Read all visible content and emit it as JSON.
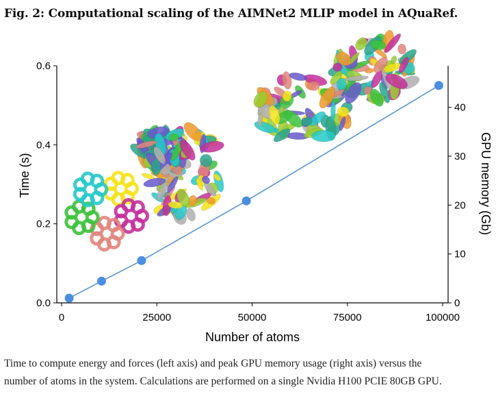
{
  "figure": {
    "title": "Fig. 2: Computational scaling of the AIMNet2 MLIP model in AQuaRef.",
    "caption_line1": "Time to compute energy and forces (left axis) and peak GPU memory usage (right axis) versus the",
    "caption_line2": "number of atoms in the system. Calculations are performed on a single Nvidia H100 PCIE 80GB GPU."
  },
  "colors": {
    "series": "#4a8fe0",
    "line": "#5b93d6",
    "axis": "#000000",
    "molecule_palette": [
      "#f5e31b",
      "#c4309b",
      "#e2857c",
      "#3dc23d",
      "#27c9c9",
      "#ef9a2c",
      "#2aa58c",
      "#6a5acd",
      "#9acd32",
      "#b0b0b0"
    ]
  },
  "chart_data": {
    "type": "line",
    "title": "",
    "xlabel": "Number of atoms",
    "ylabel": "Time (s)",
    "y2label": "GPU memory (Gb)",
    "xlim": [
      0,
      100000
    ],
    "ylim": [
      0,
      0.6
    ],
    "y2lim": [
      0,
      48.5
    ],
    "xticks": [
      0,
      25000,
      50000,
      75000,
      100000
    ],
    "xtick_labels": [
      "0",
      "25000",
      "50000",
      "75000",
      "100000"
    ],
    "yticks": [
      0.0,
      0.2,
      0.4,
      0.6
    ],
    "ytick_labels": [
      "0.0",
      "0.2",
      "0.4",
      "0.6"
    ],
    "y2ticks": [
      0,
      10,
      20,
      30,
      40
    ],
    "y2tick_labels": [
      "0",
      "10",
      "20",
      "30",
      "40"
    ],
    "series": [
      {
        "name": "Time (s)",
        "x": [
          2000,
          10500,
          21000,
          48500,
          99000
        ],
        "y": [
          0.012,
          0.055,
          0.107,
          0.258,
          0.55
        ]
      }
    ],
    "annotations": [
      "protein structure illustrations (cartoon renderings) placed above data points"
    ]
  }
}
